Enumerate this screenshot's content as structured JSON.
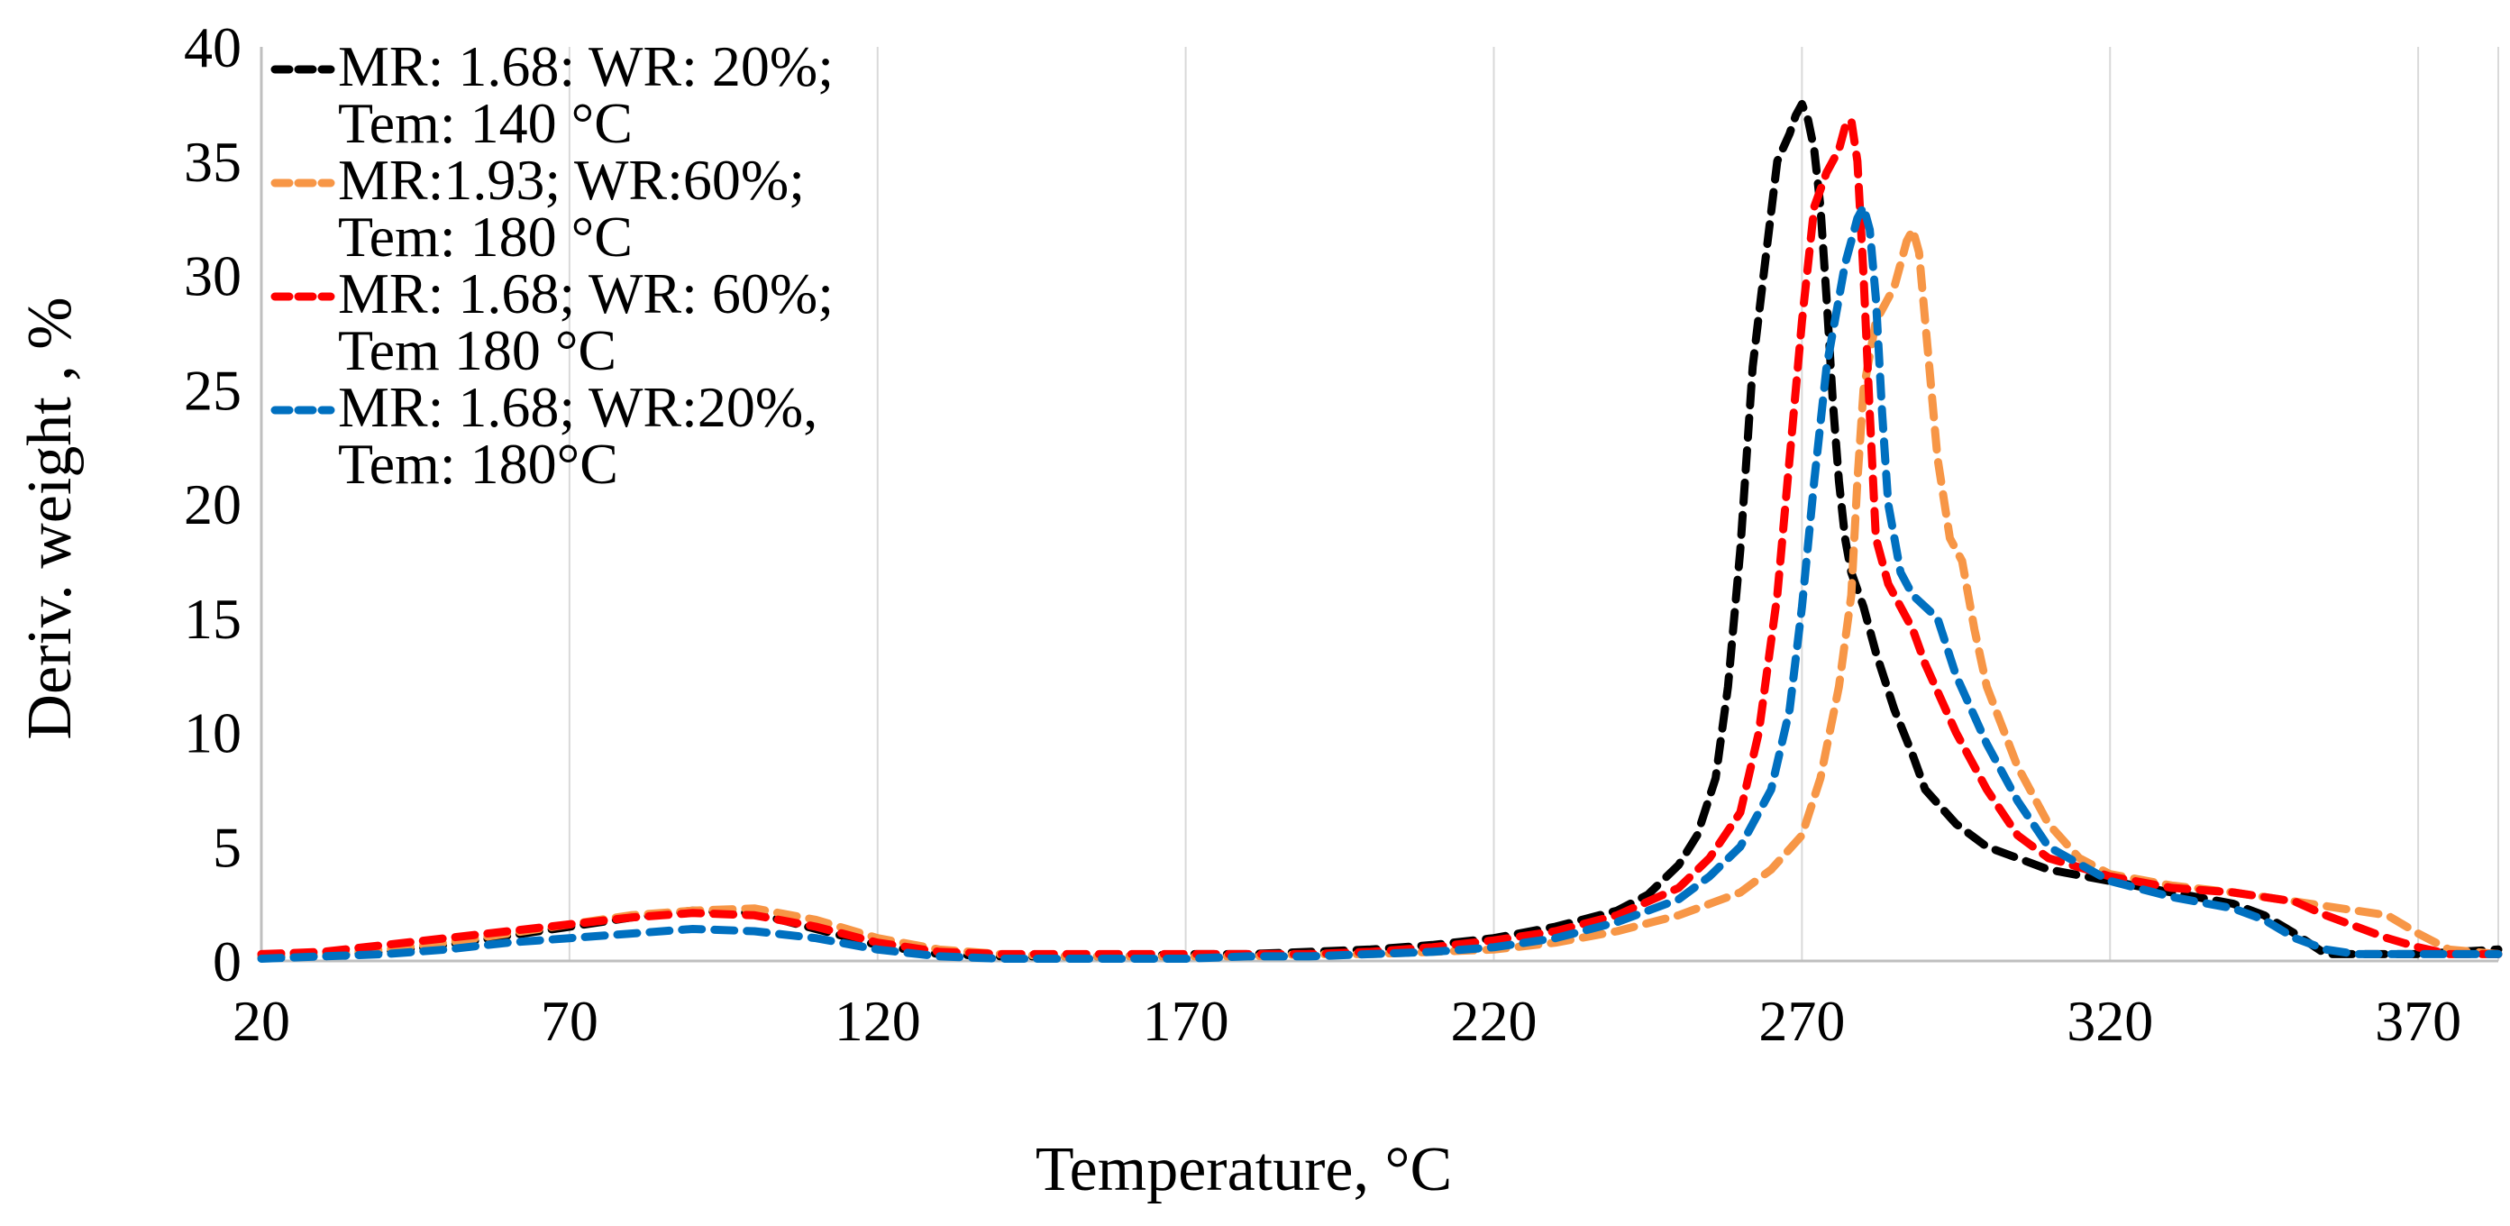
{
  "chart_data": {
    "type": "line",
    "title": "",
    "xlabel": "Temperature, °C",
    "ylabel": "Deriv. weight , %",
    "xlim": [
      20,
      383
    ],
    "ylim": [
      0,
      40
    ],
    "xticks": [
      "20",
      "70",
      "120",
      "170",
      "220",
      "270",
      "320",
      "370"
    ],
    "yticks": [
      "0",
      "5",
      "10",
      "15",
      "20",
      "25",
      "30",
      "35",
      "40"
    ],
    "grid": "vertical",
    "legend_position": "top-left",
    "series": [
      {
        "name": "MR: 1.68: WR: 20%;",
        "name_line2": "Tem: 140 °C",
        "color": "#000000",
        "style": "dashed",
        "x": [
          20,
          30,
          40,
          50,
          60,
          70,
          80,
          90,
          100,
          110,
          120,
          130,
          140,
          150,
          160,
          170,
          180,
          190,
          200,
          210,
          220,
          230,
          240,
          245,
          250,
          253,
          256,
          258,
          260,
          262,
          264,
          266,
          268,
          269,
          270,
          271,
          272,
          273,
          274,
          275,
          276,
          277,
          278,
          280,
          282,
          285,
          288,
          290,
          295,
          300,
          305,
          310,
          320,
          330,
          340,
          345,
          350,
          355,
          360,
          370,
          383
        ],
        "y": [
          0.2,
          0.2,
          0.4,
          0.7,
          1.1,
          1.5,
          1.9,
          2.2,
          2.1,
          1.4,
          0.7,
          0.3,
          0.2,
          0.2,
          0.2,
          0.3,
          0.3,
          0.4,
          0.5,
          0.7,
          1.0,
          1.5,
          2.2,
          2.9,
          4.2,
          5.5,
          8.0,
          12.0,
          18.0,
          26.0,
          30.5,
          35.0,
          36.2,
          37.0,
          37.5,
          36.8,
          35.5,
          33.0,
          29.0,
          24.5,
          21.0,
          18.5,
          17.0,
          15.5,
          13.5,
          11.0,
          9.0,
          7.5,
          6.0,
          5.0,
          4.5,
          4.0,
          3.5,
          3.0,
          2.5,
          2.0,
          1.2,
          0.3,
          0.3,
          0.3,
          0.5
        ]
      },
      {
        "name": "MR:1.93; WR:60%;",
        "name_line2": "Tem: 180 °C",
        "color": "#F79646",
        "style": "dashed",
        "x": [
          20,
          30,
          40,
          50,
          60,
          70,
          80,
          90,
          100,
          110,
          120,
          130,
          140,
          150,
          160,
          170,
          180,
          190,
          200,
          210,
          220,
          230,
          240,
          250,
          260,
          265,
          270,
          273,
          276,
          278,
          279,
          280,
          281,
          282,
          283,
          284,
          285,
          286,
          287,
          288,
          289,
          290,
          292,
          294,
          296,
          298,
          300,
          305,
          310,
          315,
          320,
          330,
          340,
          350,
          360,
          365,
          370,
          375,
          383
        ],
        "y": [
          0.2,
          0.3,
          0.5,
          0.8,
          1.2,
          1.6,
          2.0,
          2.2,
          2.3,
          1.8,
          1.0,
          0.5,
          0.3,
          0.2,
          0.2,
          0.2,
          0.2,
          0.3,
          0.3,
          0.4,
          0.5,
          0.8,
          1.3,
          2.0,
          3.0,
          4.0,
          5.5,
          8.0,
          12.0,
          16.0,
          21.0,
          25.0,
          26.5,
          28.0,
          28.5,
          29.0,
          29.5,
          30.5,
          31.5,
          32.0,
          31.0,
          28.0,
          22.0,
          18.5,
          17.5,
          14.5,
          12.0,
          8.5,
          6.0,
          4.5,
          3.8,
          3.3,
          3.0,
          2.6,
          2.2,
          2.0,
          1.2,
          0.5,
          0.3
        ]
      },
      {
        "name": "MR: 1.68; WR: 60%;",
        "name_line2": "Tem 180  °C",
        "color": "#FF0000",
        "style": "dashed",
        "x": [
          20,
          30,
          40,
          50,
          60,
          70,
          80,
          90,
          100,
          110,
          120,
          130,
          140,
          150,
          160,
          170,
          180,
          190,
          200,
          210,
          220,
          230,
          240,
          250,
          255,
          260,
          263,
          266,
          268,
          270,
          272,
          274,
          276,
          277,
          278,
          279,
          280,
          281,
          282,
          284,
          286,
          288,
          290,
          295,
          300,
          305,
          310,
          320,
          330,
          340,
          350,
          355,
          360,
          365,
          370,
          375,
          383
        ],
        "y": [
          0.3,
          0.4,
          0.7,
          1.0,
          1.3,
          1.6,
          1.9,
          2.1,
          2.0,
          1.5,
          0.8,
          0.4,
          0.3,
          0.3,
          0.3,
          0.3,
          0.3,
          0.3,
          0.4,
          0.6,
          0.9,
          1.3,
          2.0,
          3.2,
          4.5,
          6.5,
          10.0,
          16.0,
          22.0,
          28.0,
          33.0,
          34.5,
          35.5,
          36.5,
          36.8,
          35.0,
          30.0,
          24.0,
          18.5,
          16.5,
          15.5,
          14.5,
          13.0,
          10.0,
          7.5,
          5.5,
          4.5,
          3.7,
          3.2,
          3.0,
          2.6,
          2.0,
          1.5,
          1.0,
          0.6,
          0.3,
          0.3
        ]
      },
      {
        "name": "MR: 1.68; WR:20%,",
        "name_line2": "Tem: 180°C",
        "color": "#0070C0",
        "style": "dashed",
        "x": [
          20,
          30,
          40,
          50,
          60,
          70,
          80,
          90,
          100,
          110,
          120,
          130,
          140,
          150,
          160,
          170,
          180,
          190,
          200,
          210,
          220,
          230,
          240,
          250,
          255,
          260,
          265,
          268,
          270,
          272,
          274,
          276,
          277,
          278,
          279,
          280,
          281,
          282,
          283,
          284,
          286,
          288,
          290,
          292,
          295,
          300,
          305,
          310,
          320,
          330,
          340,
          345,
          350,
          355,
          360,
          370,
          383
        ],
        "y": [
          0.1,
          0.2,
          0.3,
          0.5,
          0.8,
          1.0,
          1.2,
          1.4,
          1.3,
          1.0,
          0.5,
          0.2,
          0.1,
          0.1,
          0.1,
          0.1,
          0.2,
          0.2,
          0.3,
          0.4,
          0.6,
          1.0,
          1.7,
          2.7,
          3.7,
          5.0,
          7.5,
          11.0,
          15.5,
          21.0,
          26.0,
          29.0,
          30.5,
          31.5,
          32.5,
          33.0,
          32.0,
          29.0,
          24.0,
          20.0,
          17.0,
          16.0,
          15.5,
          15.0,
          12.5,
          9.5,
          7.0,
          5.0,
          3.5,
          2.8,
          2.3,
          1.8,
          1.0,
          0.5,
          0.3,
          0.3,
          0.3
        ]
      }
    ]
  }
}
